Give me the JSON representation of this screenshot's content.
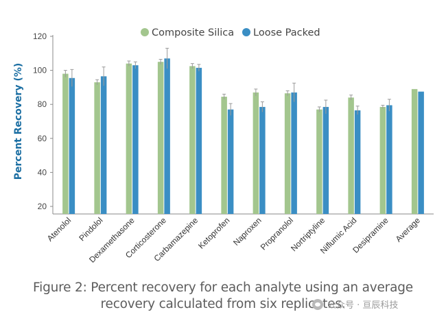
{
  "chart_data": {
    "type": "bar",
    "title": "",
    "xlabel": "",
    "ylabel": "Percent Recovery (%)",
    "ylim": [
      20,
      120
    ],
    "yticks": [
      20,
      40,
      60,
      80,
      100,
      120
    ],
    "grid": false,
    "legend_position": "top",
    "categories": [
      "Atenolol",
      "Pindolol",
      "Dexamethasone",
      "Corticosterone",
      "Carbamazepine",
      "Ketoprofen",
      "Naproxen",
      "Propranolol",
      "Nortriptyline",
      "Niflumic Acid",
      "Desipramine",
      "Average"
    ],
    "series": [
      {
        "name": "Composite Silica",
        "color": "#a3c68e",
        "values": [
          98,
          93,
          104,
          105,
          102.5,
          84.5,
          87,
          86.5,
          77,
          84,
          78.5,
          89
        ],
        "errors": [
          2,
          1.5,
          1.5,
          1.5,
          1.5,
          1.5,
          2,
          1.5,
          1.5,
          1.5,
          1,
          0
        ]
      },
      {
        "name": "Loose Packed",
        "color": "#3a8ec4",
        "values": [
          95.5,
          96.5,
          103,
          107,
          101.5,
          77,
          78.5,
          87,
          78.5,
          76.5,
          79.5,
          87.5
        ],
        "errors": [
          5,
          5.5,
          2,
          6,
          2,
          3.5,
          3,
          5.5,
          4,
          2.5,
          3.5,
          0
        ]
      }
    ]
  },
  "caption": {
    "line1": "Figure 2: Percent recovery for each analyte using an average",
    "line2": "recovery calculated from six replicates."
  },
  "watermark": {
    "text": "公众号 · 亘辰科技",
    "icon": "wechat-icon"
  }
}
